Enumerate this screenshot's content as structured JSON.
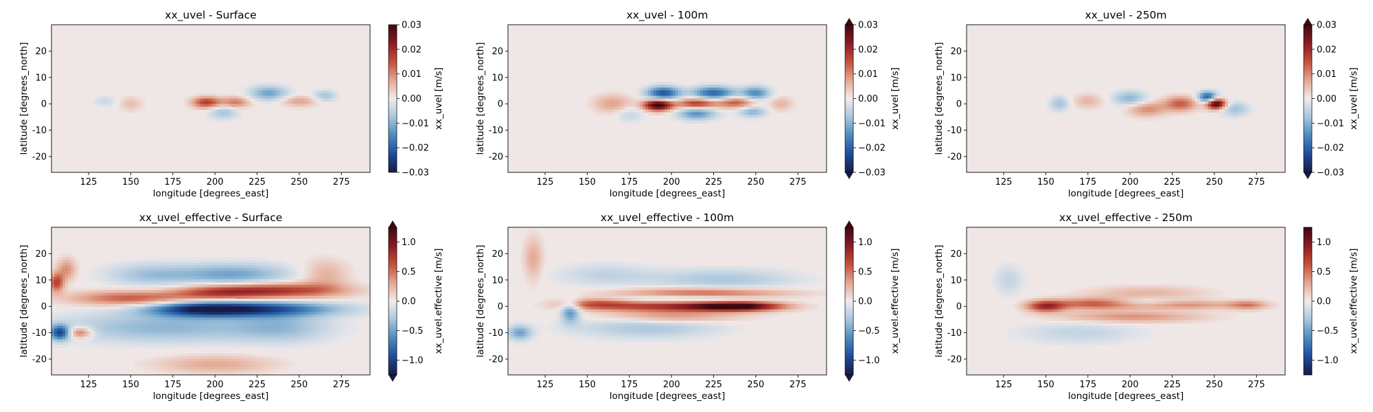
{
  "figure": {
    "type": "heatmap-grid",
    "rows": 2,
    "cols": 3
  },
  "colormap": {
    "name": "balance",
    "stops": [
      "#181c43",
      "#1f4c9c",
      "#4b8bbd",
      "#a9c6dc",
      "#f1ecec",
      "#e3a791",
      "#c3503a",
      "#8c1b24",
      "#3c0911"
    ],
    "nodata": "#efe7e6"
  },
  "chart_data": [
    {
      "type": "heatmap",
      "title": "xx_uvel - Surface",
      "xlabel": "longitude [degrees_east]",
      "ylabel": "latitude [degrees_north]",
      "xlim": [
        103,
        292
      ],
      "ylim": [
        -26,
        30
      ],
      "xticks": [
        125,
        150,
        175,
        200,
        225,
        250,
        275
      ],
      "yticks": [
        -20,
        -10,
        0,
        10,
        20
      ],
      "colorbar": {
        "label": "xx_uvel [m/s]",
        "vmin": -0.03,
        "vmax": 0.03,
        "ticks": [
          "0.03",
          "0.02",
          "0.01",
          "0.00",
          "−0.01",
          "−0.02",
          "−0.03"
        ],
        "extend": "neither"
      },
      "field": [
        {
          "lon": 195,
          "lat": 0.5,
          "amp": 0.018,
          "wx": 6,
          "wy": 1.5
        },
        {
          "lon": 212,
          "lat": 0.5,
          "amp": 0.012,
          "wx": 6,
          "wy": 1.5
        },
        {
          "lon": 232,
          "lat": 4,
          "amp": -0.012,
          "wx": 8,
          "wy": 2
        },
        {
          "lon": 205,
          "lat": -3,
          "amp": -0.008,
          "wx": 6,
          "wy": 2
        },
        {
          "lon": 250,
          "lat": 1,
          "amp": 0.008,
          "wx": 8,
          "wy": 1.5
        },
        {
          "lon": 265,
          "lat": 3,
          "amp": -0.008,
          "wx": 5,
          "wy": 1.5
        },
        {
          "lon": 150,
          "lat": 0,
          "amp": 0.005,
          "wx": 5,
          "wy": 2
        },
        {
          "lon": 135,
          "lat": 1,
          "amp": -0.004,
          "wx": 5,
          "wy": 1.5
        }
      ]
    },
    {
      "type": "heatmap",
      "title": "xx_uvel - 100m",
      "xlabel": "longitude [degrees_east]",
      "ylabel": "latitude [degrees_north]",
      "xlim": [
        103,
        292
      ],
      "ylim": [
        -26,
        30
      ],
      "xticks": [
        125,
        150,
        175,
        200,
        225,
        250,
        275
      ],
      "yticks": [
        -20,
        -10,
        0,
        10,
        20
      ],
      "colorbar": {
        "label": "xx_uvel [m/s]",
        "vmin": -0.03,
        "vmax": 0.03,
        "ticks": [
          "0.03",
          "0.02",
          "0.01",
          "0.00",
          "−0.01",
          "−0.02",
          "−0.03"
        ],
        "extend": "both"
      },
      "field": [
        {
          "lon": 192,
          "lat": -0.5,
          "amp": 0.032,
          "wx": 6,
          "wy": 1.5
        },
        {
          "lon": 215,
          "lat": 0,
          "amp": 0.02,
          "wx": 8,
          "wy": 1.5
        },
        {
          "lon": 238,
          "lat": 0.5,
          "amp": 0.015,
          "wx": 8,
          "wy": 1.5
        },
        {
          "lon": 195,
          "lat": 4,
          "amp": -0.022,
          "wx": 7,
          "wy": 1.8
        },
        {
          "lon": 225,
          "lat": 4,
          "amp": -0.02,
          "wx": 9,
          "wy": 1.8
        },
        {
          "lon": 250,
          "lat": 4,
          "amp": -0.015,
          "wx": 6,
          "wy": 1.8
        },
        {
          "lon": 215,
          "lat": -3.5,
          "amp": -0.015,
          "wx": 8,
          "wy": 1.8
        },
        {
          "lon": 248,
          "lat": -3,
          "amp": -0.01,
          "wx": 6,
          "wy": 1.5
        },
        {
          "lon": 165,
          "lat": 0,
          "amp": 0.008,
          "wx": 8,
          "wy": 2.5
        },
        {
          "lon": 175,
          "lat": -4,
          "amp": -0.005,
          "wx": 6,
          "wy": 2
        },
        {
          "lon": 265,
          "lat": 0,
          "amp": 0.006,
          "wx": 5,
          "wy": 2
        }
      ]
    },
    {
      "type": "heatmap",
      "title": "xx_uvel - 250m",
      "xlabel": "longitude [degrees_east]",
      "ylabel": "latitude [degrees_north]",
      "xlim": [
        103,
        292
      ],
      "ylim": [
        -26,
        30
      ],
      "xticks": [
        125,
        150,
        175,
        200,
        225,
        250,
        275
      ],
      "yticks": [
        -20,
        -10,
        0,
        10,
        20
      ],
      "colorbar": {
        "label": "xx_uvel [m/s]",
        "vmin": -0.03,
        "vmax": 0.03,
        "ticks": [
          "0.03",
          "0.02",
          "0.01",
          "0.00",
          "−0.01",
          "−0.02",
          "−0.03"
        ],
        "extend": "both"
      },
      "field": [
        {
          "lon": 251,
          "lat": 0,
          "amp": 0.032,
          "wx": 4,
          "wy": 1.4
        },
        {
          "lon": 246,
          "lat": 2.5,
          "amp": -0.022,
          "wx": 4,
          "wy": 1.5
        },
        {
          "lon": 230,
          "lat": 0,
          "amp": 0.014,
          "wx": 7,
          "wy": 2
        },
        {
          "lon": 210,
          "lat": -2,
          "amp": 0.01,
          "wx": 8,
          "wy": 2
        },
        {
          "lon": 200,
          "lat": 2,
          "amp": -0.01,
          "wx": 7,
          "wy": 2
        },
        {
          "lon": 158,
          "lat": 0,
          "amp": -0.008,
          "wx": 4,
          "wy": 2
        },
        {
          "lon": 175,
          "lat": 1,
          "amp": 0.006,
          "wx": 6,
          "wy": 2
        },
        {
          "lon": 262,
          "lat": -2,
          "amp": -0.008,
          "wx": 6,
          "wy": 2
        }
      ]
    },
    {
      "type": "heatmap",
      "title": "xx_uvel_effective - Surface",
      "xlabel": "longitude [degrees_east]",
      "ylabel": "latitude [degrees_north]",
      "xlim": [
        103,
        292
      ],
      "ylim": [
        -26,
        30
      ],
      "xticks": [
        125,
        150,
        175,
        200,
        225,
        250,
        275
      ],
      "yticks": [
        -20,
        -10,
        0,
        10,
        20
      ],
      "colorbar": {
        "label": "xx_uvel.effective [m/s]",
        "vmin": -1.25,
        "vmax": 1.25,
        "ticks": [
          "1.0",
          "0.5",
          "0.0",
          "−0.5",
          "−1.0"
        ],
        "extend": "both"
      },
      "field": [
        {
          "lon": 235,
          "lat": 6,
          "amp": 0.8,
          "wx": 28,
          "wy": 2
        },
        {
          "lon": 200,
          "lat": 5,
          "amp": 0.5,
          "wx": 18,
          "wy": 2
        },
        {
          "lon": 150,
          "lat": 3,
          "amp": 0.6,
          "wx": 25,
          "wy": 2
        },
        {
          "lon": 220,
          "lat": -1,
          "amp": -1.0,
          "wx": 35,
          "wy": 2
        },
        {
          "lon": 190,
          "lat": -1,
          "amp": -0.6,
          "wx": 20,
          "wy": 2
        },
        {
          "lon": 210,
          "lat": 12,
          "amp": -0.5,
          "wx": 25,
          "wy": 3
        },
        {
          "lon": 160,
          "lat": 12,
          "amp": -0.3,
          "wx": 18,
          "wy": 3
        },
        {
          "lon": 170,
          "lat": -8,
          "amp": -0.4,
          "wx": 45,
          "wy": 4
        },
        {
          "lon": 108,
          "lat": -10,
          "amp": -0.9,
          "wx": 4,
          "wy": 2
        },
        {
          "lon": 120,
          "lat": -10,
          "amp": 0.6,
          "wx": 5,
          "wy": 1.5
        },
        {
          "lon": 106,
          "lat": 9,
          "amp": 0.7,
          "wx": 3,
          "wy": 2.5
        },
        {
          "lon": 112,
          "lat": 14,
          "amp": 0.4,
          "wx": 4,
          "wy": 3
        },
        {
          "lon": 240,
          "lat": -8,
          "amp": -0.3,
          "wx": 20,
          "wy": 4
        },
        {
          "lon": 200,
          "lat": -22,
          "amp": 0.3,
          "wx": 25,
          "wy": 2.5
        },
        {
          "lon": 265,
          "lat": 12,
          "amp": 0.3,
          "wx": 10,
          "wy": 4
        }
      ]
    },
    {
      "type": "heatmap",
      "title": "xx_uvel_effective - 100m",
      "xlabel": "longitude [degrees_east]",
      "ylabel": "latitude [degrees_north]",
      "xlim": [
        103,
        292
      ],
      "ylim": [
        -26,
        30
      ],
      "xticks": [
        125,
        150,
        175,
        200,
        225,
        250,
        275
      ],
      "yticks": [
        -20,
        -10,
        0,
        10,
        20
      ],
      "colorbar": {
        "label": "xx_uvel.effective [m/s]",
        "vmin": -1.25,
        "vmax": 1.25,
        "ticks": [
          "1.0",
          "0.5",
          "0.0",
          "−0.5",
          "−1.0"
        ],
        "extend": "both"
      },
      "field": [
        {
          "lon": 240,
          "lat": 0,
          "amp": 1.2,
          "wx": 18,
          "wy": 1.2
        },
        {
          "lon": 200,
          "lat": 0,
          "amp": 0.8,
          "wx": 30,
          "wy": 1.5
        },
        {
          "lon": 155,
          "lat": 1,
          "amp": 0.5,
          "wx": 15,
          "wy": 1.5
        },
        {
          "lon": 220,
          "lat": 5,
          "amp": 0.6,
          "wx": 35,
          "wy": 1.5
        },
        {
          "lon": 210,
          "lat": 2.8,
          "amp": -0.4,
          "wx": 30,
          "wy": 1.0
        },
        {
          "lon": 200,
          "lat": -4,
          "amp": 0.4,
          "wx": 28,
          "wy": 1.5
        },
        {
          "lon": 230,
          "lat": 10,
          "amp": -0.3,
          "wx": 30,
          "wy": 3
        },
        {
          "lon": 185,
          "lat": -8,
          "amp": -0.3,
          "wx": 30,
          "wy": 3
        },
        {
          "lon": 140,
          "lat": -2,
          "amp": -0.6,
          "wx": 4,
          "wy": 3
        },
        {
          "lon": 110,
          "lat": -10,
          "amp": -0.5,
          "wx": 5,
          "wy": 2
        },
        {
          "lon": 118,
          "lat": 18,
          "amp": 0.3,
          "wx": 4,
          "wy": 6
        },
        {
          "lon": 160,
          "lat": 12,
          "amp": -0.2,
          "wx": 20,
          "wy": 3
        }
      ]
    },
    {
      "type": "heatmap",
      "title": "xx_uvel_effective - 250m",
      "xlabel": "longitude [degrees_east]",
      "ylabel": "latitude [degrees_north]",
      "xlim": [
        103,
        292
      ],
      "ylim": [
        -26,
        30
      ],
      "xticks": [
        125,
        150,
        175,
        200,
        225,
        250,
        275
      ],
      "yticks": [
        -20,
        -10,
        0,
        10,
        20
      ],
      "colorbar": {
        "label": "xx_uvel.effective [m/s]",
        "vmin": -1.25,
        "vmax": 1.25,
        "ticks": [
          "1.0",
          "0.5",
          "0.0",
          "−0.5",
          "−1.0"
        ],
        "extend": "neither"
      },
      "field": [
        {
          "lon": 150,
          "lat": 0,
          "amp": 0.8,
          "wx": 8,
          "wy": 1.5
        },
        {
          "lon": 180,
          "lat": 1,
          "amp": 0.6,
          "wx": 18,
          "wy": 1.5
        },
        {
          "lon": 230,
          "lat": 0.5,
          "amp": 0.4,
          "wx": 25,
          "wy": 1.2
        },
        {
          "lon": 270,
          "lat": 0.5,
          "amp": 0.4,
          "wx": 8,
          "wy": 1.2
        },
        {
          "lon": 200,
          "lat": -4,
          "amp": 0.4,
          "wx": 30,
          "wy": 1.5
        },
        {
          "lon": 210,
          "lat": 5,
          "amp": 0.25,
          "wx": 25,
          "wy": 2
        },
        {
          "lon": 205,
          "lat": 1.5,
          "amp": -0.3,
          "wx": 15,
          "wy": 1.2
        },
        {
          "lon": 170,
          "lat": -10,
          "amp": -0.2,
          "wx": 25,
          "wy": 3
        },
        {
          "lon": 128,
          "lat": 10,
          "amp": -0.2,
          "wx": 6,
          "wy": 4
        }
      ]
    }
  ]
}
